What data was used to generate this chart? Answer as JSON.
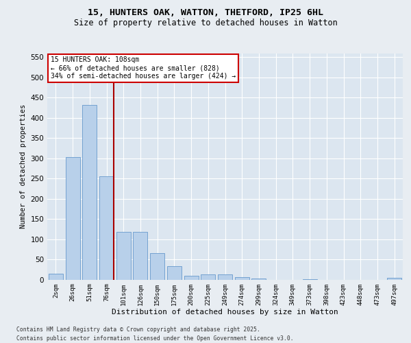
{
  "title_line1": "15, HUNTERS OAK, WATTON, THETFORD, IP25 6HL",
  "title_line2": "Size of property relative to detached houses in Watton",
  "xlabel": "Distribution of detached houses by size in Watton",
  "ylabel": "Number of detached properties",
  "categories": [
    "2sqm",
    "26sqm",
    "51sqm",
    "76sqm",
    "101sqm",
    "126sqm",
    "150sqm",
    "175sqm",
    "200sqm",
    "225sqm",
    "249sqm",
    "274sqm",
    "299sqm",
    "324sqm",
    "349sqm",
    "373sqm",
    "398sqm",
    "423sqm",
    "448sqm",
    "473sqm",
    "497sqm"
  ],
  "values": [
    15,
    303,
    432,
    255,
    118,
    118,
    65,
    33,
    10,
    12,
    12,
    6,
    2,
    0,
    0,
    1,
    0,
    0,
    0,
    0,
    4
  ],
  "bar_color": "#b8d0ea",
  "bar_edge_color": "#6699cc",
  "background_color": "#dce6f0",
  "grid_color": "#ffffff",
  "property_line_color": "#aa0000",
  "annotation_text": "15 HUNTERS OAK: 108sqm\n← 66% of detached houses are smaller (828)\n34% of semi-detached houses are larger (424) →",
  "annotation_box_facecolor": "#ffffff",
  "annotation_box_edgecolor": "#cc0000",
  "ylim": [
    0,
    560
  ],
  "yticks": [
    0,
    50,
    100,
    150,
    200,
    250,
    300,
    350,
    400,
    450,
    500,
    550
  ],
  "fig_bg": "#e8edf2",
  "footer_line1": "Contains HM Land Registry data © Crown copyright and database right 2025.",
  "footer_line2": "Contains public sector information licensed under the Open Government Licence v3.0."
}
